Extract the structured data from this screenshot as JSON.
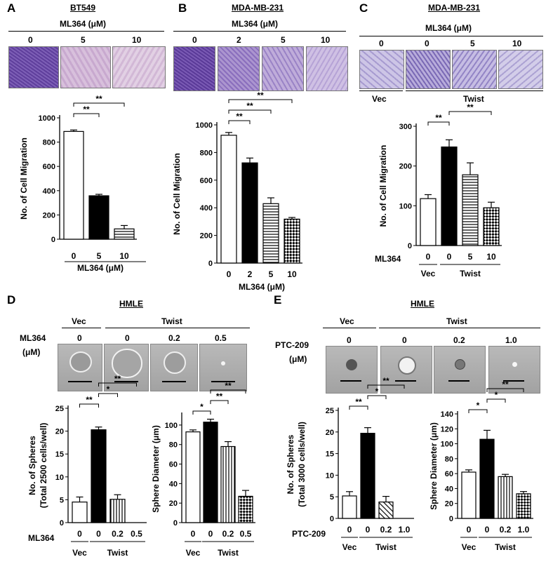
{
  "panels": {
    "A": {
      "letter": "A",
      "title": "BT549",
      "treatment_header": "ML364 (μM)",
      "image_labels": [
        "0",
        "5",
        "10"
      ],
      "x_footer": "ML364 (μM)"
    },
    "B": {
      "letter": "B",
      "title": "MDA-MB-231",
      "treatment_header": "ML364 (μM)",
      "image_labels": [
        "0",
        "2",
        "5",
        "10"
      ],
      "x_footer": "ML364 (μM)"
    },
    "C": {
      "letter": "C",
      "title": "MDA-MB-231",
      "treatment_header": "ML364 (μM)",
      "image_labels": [
        "0",
        "0",
        "5",
        "10"
      ],
      "group_vec": "Vec",
      "group_twist": "Twist",
      "row_label": "ML364"
    },
    "D": {
      "letter": "D",
      "title": "HMLE",
      "group_vec": "Vec",
      "group_twist": "Twist",
      "row_label_1": "ML364",
      "row_label_2": "(μM)",
      "image_labels": [
        "0",
        "0",
        "0.2",
        "0.5"
      ],
      "x_row_label": "ML364"
    },
    "E": {
      "letter": "E",
      "title": "HMLE",
      "group_vec": "Vec",
      "group_twist": "Twist",
      "row_label_1": "PTC-209",
      "row_label_2": "(μM)",
      "image_labels": [
        "0",
        "0",
        "0.2",
        "1.0"
      ],
      "x_row_label": "PTC-209"
    }
  },
  "chart_data": [
    {
      "id": "A",
      "type": "bar",
      "ylabel": "No. of Cell Migration",
      "xlabel": "ML364 (μM)",
      "categories": [
        "0",
        "5",
        "10"
      ],
      "values": [
        888,
        358,
        85
      ],
      "errors": [
        12,
        12,
        28
      ],
      "patterns": [
        "white",
        "black",
        "hstripe"
      ],
      "ylim": [
        0,
        1000
      ],
      "yticks": [
        0,
        200,
        400,
        600,
        800,
        1000
      ],
      "significance": [
        {
          "from": 0,
          "to": 1,
          "label": "**"
        },
        {
          "from": 0,
          "to": 2,
          "label": "**"
        }
      ]
    },
    {
      "id": "B",
      "type": "bar",
      "ylabel": "No. of Cell Migration",
      "xlabel": "ML364 (μM)",
      "categories": [
        "0",
        "2",
        "5",
        "10"
      ],
      "values": [
        925,
        725,
        430,
        318
      ],
      "errors": [
        20,
        35,
        42,
        12
      ],
      "patterns": [
        "white",
        "black",
        "hstripe",
        "check"
      ],
      "ylim": [
        0,
        1000
      ],
      "yticks": [
        0,
        200,
        400,
        600,
        800,
        1000
      ],
      "significance": [
        {
          "from": 0,
          "to": 1,
          "label": "**"
        },
        {
          "from": 0,
          "to": 2,
          "label": "**"
        },
        {
          "from": 0,
          "to": 3,
          "label": "**"
        }
      ]
    },
    {
      "id": "C",
      "type": "bar",
      "ylabel": "No. of Cell Migration",
      "categories": [
        "0",
        "0",
        "5",
        "10"
      ],
      "values": [
        118,
        248,
        178,
        95
      ],
      "errors": [
        10,
        18,
        30,
        14
      ],
      "patterns": [
        "white",
        "black",
        "hstripe",
        "check"
      ],
      "ylim": [
        0,
        300
      ],
      "yticks": [
        0,
        100,
        200,
        300
      ],
      "groups": [
        {
          "label": "Vec",
          "from": 0,
          "to": 0
        },
        {
          "label": "Twist",
          "from": 1,
          "to": 3
        }
      ],
      "significance": [
        {
          "from": 0,
          "to": 1,
          "label": "**"
        },
        {
          "from": 1,
          "to": 3,
          "label": "**"
        }
      ]
    },
    {
      "id": "D1",
      "type": "bar",
      "ylabel": "No. of Spheres\n(Total 2500 cells/well)",
      "categories": [
        "0",
        "0",
        "0.2",
        "0.5"
      ],
      "values": [
        4.5,
        20.3,
        5.1,
        0
      ],
      "errors": [
        1.1,
        0.6,
        1.0,
        0
      ],
      "patterns": [
        "white",
        "black",
        "vstripe",
        "check"
      ],
      "ylim": [
        0,
        25
      ],
      "yticks": [
        0,
        5,
        10,
        15,
        20,
        25
      ],
      "groups": [
        {
          "label": "Vec",
          "from": 0,
          "to": 0
        },
        {
          "label": "Twist",
          "from": 1,
          "to": 3
        }
      ],
      "significance": [
        {
          "from": 0,
          "to": 1,
          "label": "**"
        },
        {
          "from": 1,
          "to": 2,
          "label": "*"
        },
        {
          "from": 1,
          "to": 3,
          "label": "**"
        }
      ]
    },
    {
      "id": "D2",
      "type": "bar",
      "ylabel": "Sphere Diameter (μm)",
      "categories": [
        "0",
        "0",
        "0.2",
        "0.5"
      ],
      "values": [
        93,
        103,
        78,
        27
      ],
      "errors": [
        2,
        3,
        5,
        6
      ],
      "patterns": [
        "white",
        "black",
        "vstripe",
        "check"
      ],
      "ylim": [
        0,
        110
      ],
      "yticks": [
        0,
        20,
        40,
        60,
        80,
        100
      ],
      "groups": [
        {
          "label": "Vec",
          "from": 0,
          "to": 0
        },
        {
          "label": "Twist",
          "from": 1,
          "to": 3
        }
      ],
      "significance": [
        {
          "from": 0,
          "to": 1,
          "label": "*"
        },
        {
          "from": 1,
          "to": 2,
          "label": "**"
        },
        {
          "from": 1,
          "to": 3,
          "label": "**"
        }
      ]
    },
    {
      "id": "E1",
      "type": "bar",
      "ylabel": "No. of Spheres\n(Total 3000 cells/well)",
      "categories": [
        "0",
        "0",
        "0.2",
        "1.0"
      ],
      "values": [
        5.2,
        19.7,
        3.8,
        0
      ],
      "errors": [
        1.0,
        1.3,
        1.3,
        0
      ],
      "patterns": [
        "white",
        "black",
        "dstripe",
        "check"
      ],
      "ylim": [
        0,
        25
      ],
      "yticks": [
        0,
        5,
        10,
        15,
        20,
        25
      ],
      "groups": [
        {
          "label": "Vec",
          "from": 0,
          "to": 0
        },
        {
          "label": "Twist",
          "from": 1,
          "to": 3
        }
      ],
      "significance": [
        {
          "from": 0,
          "to": 1,
          "label": "**"
        },
        {
          "from": 1,
          "to": 2,
          "label": "*"
        },
        {
          "from": 1,
          "to": 3,
          "label": "**"
        }
      ]
    },
    {
      "id": "E2",
      "type": "bar",
      "ylabel": "Sphere Diameter (μm)",
      "categories": [
        "0",
        "0",
        "0.2",
        "1.0"
      ],
      "values": [
        62,
        106,
        56,
        33
      ],
      "errors": [
        3,
        12,
        3,
        3
      ],
      "patterns": [
        "white",
        "black",
        "vstripe",
        "check"
      ],
      "ylim": [
        0,
        140
      ],
      "yticks": [
        0,
        20,
        40,
        60,
        80,
        100,
        120,
        140
      ],
      "groups": [
        {
          "label": "Vec",
          "from": 0,
          "to": 0
        },
        {
          "label": "Twist",
          "from": 1,
          "to": 3
        }
      ],
      "significance": [
        {
          "from": 0,
          "to": 1,
          "label": "*"
        },
        {
          "from": 1,
          "to": 2,
          "label": "*"
        },
        {
          "from": 1,
          "to": 3,
          "label": "**"
        }
      ]
    }
  ]
}
